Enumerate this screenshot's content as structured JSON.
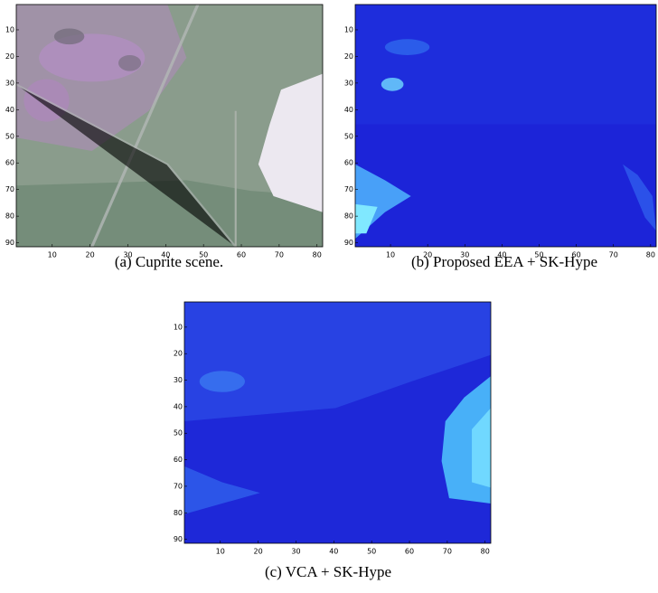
{
  "figure": {
    "panels": [
      {
        "caption": "(a) Cuprite scene.",
        "xlim": [
          0.5,
          81.5
        ],
        "ylim": [
          0.5,
          91.5
        ],
        "xticks": [
          10,
          20,
          30,
          40,
          50,
          60,
          70,
          80
        ],
        "yticks": [
          10,
          20,
          30,
          40,
          50,
          60,
          70,
          80,
          90
        ]
      },
      {
        "caption": "(b) Proposed EEA + SK-Hype",
        "xlim": [
          0.5,
          81.5
        ],
        "ylim": [
          0.5,
          91.5
        ],
        "xticks": [
          10,
          20,
          30,
          40,
          50,
          60,
          70,
          80
        ],
        "yticks": [
          10,
          20,
          30,
          40,
          50,
          60,
          70,
          80,
          90
        ]
      },
      {
        "caption": "(c) VCA + SK-Hype",
        "xlim": [
          0.5,
          81.5
        ],
        "ylim": [
          0.5,
          91.5
        ],
        "xticks": [
          10,
          20,
          30,
          40,
          50,
          60,
          70,
          80
        ],
        "yticks": [
          10,
          20,
          30,
          40,
          50,
          60,
          70,
          80,
          90
        ]
      }
    ]
  }
}
